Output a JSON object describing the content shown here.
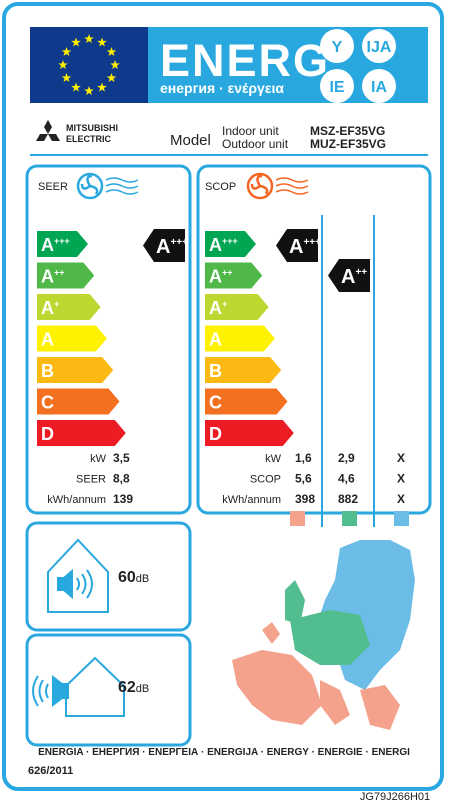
{
  "header": {
    "title": "ENERG",
    "languages": "енергия · ενέργεια",
    "badges": [
      "Y",
      "IJA",
      "IE",
      "IA"
    ]
  },
  "brand": [
    "MITSUBISHI",
    "ELECTRIC"
  ],
  "model": {
    "label": "Model",
    "units": [
      {
        "unit": "Indoor unit",
        "name": "MSZ-EF35VG"
      },
      {
        "unit": "Outdoor unit",
        "name": "MUZ-EF35VG"
      }
    ]
  },
  "scale": [
    {
      "letter": "A",
      "plus": "+++"
    },
    {
      "letter": "A",
      "plus": "++"
    },
    {
      "letter": "A",
      "plus": "+"
    },
    {
      "letter": "A"
    },
    {
      "letter": "B"
    },
    {
      "letter": "C"
    },
    {
      "letter": "D"
    }
  ],
  "cooling": {
    "title": "SEER",
    "rating": {
      "letter": "A",
      "plus": "+++"
    },
    "rows": [
      {
        "label": "kW",
        "value": "3,5"
      },
      {
        "label": "SEER",
        "value": "8,8"
      },
      {
        "label": "kWh/annum",
        "value": "139"
      }
    ]
  },
  "heating": {
    "title": "SCOP",
    "ratings": [
      {
        "letter": "A",
        "plus": "+++"
      },
      {
        "letter": "A",
        "plus": "++"
      }
    ],
    "rows": [
      {
        "label": "kW",
        "values": [
          "1,6",
          "2,9",
          "X"
        ]
      },
      {
        "label": "SCOP",
        "values": [
          "5,6",
          "4,6",
          "X"
        ]
      },
      {
        "label": "kWh/annum",
        "values": [
          "398",
          "882",
          "X"
        ]
      }
    ]
  },
  "noise": [
    {
      "value": "60",
      "unit": "dB"
    },
    {
      "value": "62",
      "unit": "dB"
    }
  ],
  "footer": {
    "languages": "ENERGIA · ЕНЕРГИЯ · ΕΝΕΡΓΕΙΑ · ENERGIJA · ENERGY · ENERGIE · ENERGI",
    "regulation": "626/2011",
    "code": "JG79J266H01"
  }
}
